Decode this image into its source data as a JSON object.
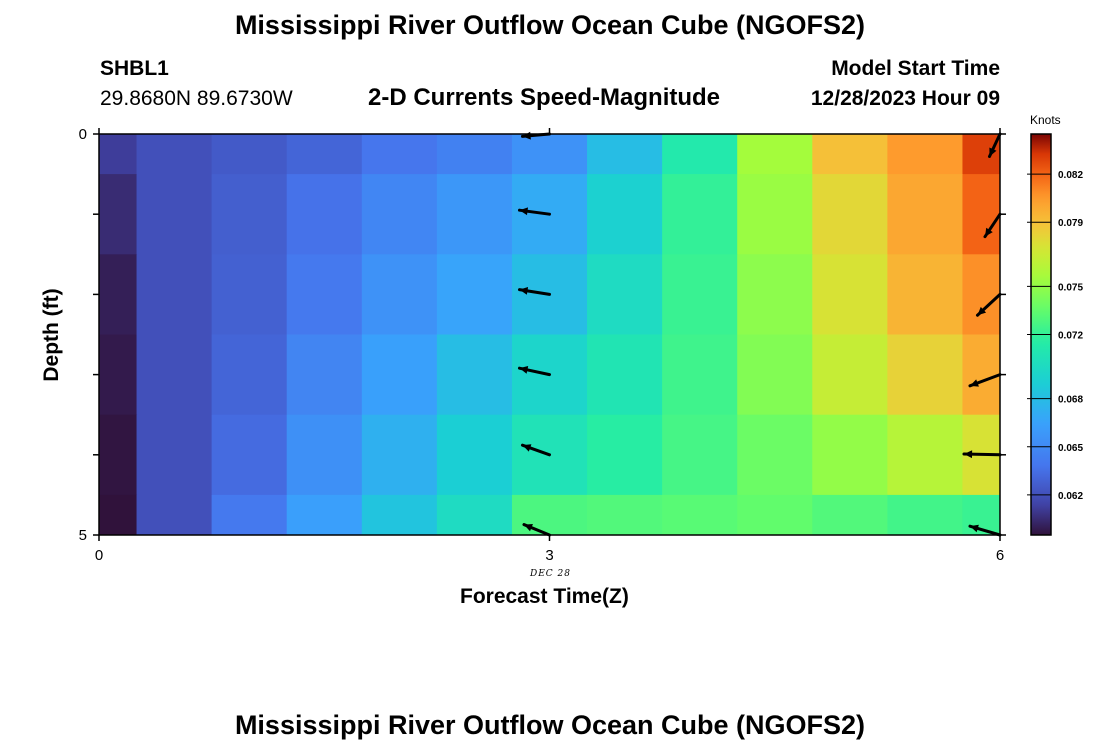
{
  "header": {
    "title_top": "Mississippi River Outflow Ocean Cube (NGOFS2)",
    "station_id": "SHBL1",
    "station_coords": "29.8680N  89.6730W",
    "plot_title": "2-D Currents Speed-Magnitude",
    "model_start_label": "Model Start Time",
    "model_start_value": "12/28/2023 Hour 09",
    "title_bottom": "Mississippi River Outflow Ocean Cube (NGOFS2)"
  },
  "chart_data": {
    "type": "heatmap",
    "title": "2-D Currents Speed-Magnitude",
    "xlabel": "Forecast Time(Z)",
    "ylabel": "Depth (ft)",
    "date_label": "DEC 28",
    "xlim": [
      0,
      6
    ],
    "ylim": [
      0,
      5
    ],
    "x_ticks": [
      0,
      3,
      6
    ],
    "x_tick_labels": [
      "0",
      "3",
      "6"
    ],
    "y_ticks": [
      0,
      1,
      2,
      3,
      4,
      5
    ],
    "y_tick_labels": [
      "0",
      "",
      "",
      "",
      "",
      "5"
    ],
    "x_edges": [
      0,
      0.25,
      0.75,
      1.25,
      1.75,
      2.25,
      2.75,
      3.25,
      3.75,
      4.25,
      4.75,
      5.25,
      5.75,
      6
    ],
    "y_edges": [
      0,
      0.5,
      1.5,
      2.5,
      3.5,
      4.5,
      5
    ],
    "colorbar": {
      "label": "Knots",
      "min": 0.0595,
      "max": 0.0845,
      "ticks": [
        0.062,
        0.065,
        0.068,
        0.072,
        0.075,
        0.079,
        0.082
      ],
      "tick_labels": [
        "0.062",
        "0.065",
        "0.068",
        "0.072",
        "0.075",
        "0.079",
        "0.082"
      ]
    },
    "speed": [
      [
        0.0612,
        0.062,
        0.0625,
        0.063,
        0.0638,
        0.0645,
        0.0655,
        0.068,
        0.0712,
        0.0755,
        0.079,
        0.0805,
        0.083
      ],
      [
        0.0605,
        0.062,
        0.0627,
        0.0636,
        0.0648,
        0.0658,
        0.067,
        0.0692,
        0.072,
        0.0752,
        0.078,
        0.08,
        0.082
      ],
      [
        0.06,
        0.062,
        0.0628,
        0.064,
        0.0655,
        0.0666,
        0.068,
        0.07,
        0.0722,
        0.0748,
        0.0775,
        0.0795,
        0.0808
      ],
      [
        0.0598,
        0.062,
        0.063,
        0.0647,
        0.0664,
        0.068,
        0.0695,
        0.0708,
        0.0724,
        0.0745,
        0.0768,
        0.0782,
        0.0798
      ],
      [
        0.0596,
        0.062,
        0.0633,
        0.0654,
        0.0673,
        0.069,
        0.0706,
        0.0716,
        0.0726,
        0.0738,
        0.075,
        0.0762,
        0.0775
      ],
      [
        0.0594,
        0.062,
        0.064,
        0.0663,
        0.0684,
        0.07,
        0.0728,
        0.073,
        0.0732,
        0.0735,
        0.073,
        0.0725,
        0.0722
      ]
    ],
    "vectors": [
      {
        "x": 3,
        "y": 0,
        "dx": -0.18,
        "dy": 0.03
      },
      {
        "x": 3,
        "y": 1,
        "dx": -0.2,
        "dy": -0.05
      },
      {
        "x": 3,
        "y": 2,
        "dx": -0.2,
        "dy": -0.06
      },
      {
        "x": 3,
        "y": 3,
        "dx": -0.2,
        "dy": -0.08
      },
      {
        "x": 3,
        "y": 4,
        "dx": -0.18,
        "dy": -0.12
      },
      {
        "x": 3,
        "y": 5,
        "dx": -0.17,
        "dy": -0.13
      },
      {
        "x": 6,
        "y": 0,
        "dx": -0.07,
        "dy": 0.28
      },
      {
        "x": 6,
        "y": 1,
        "dx": -0.1,
        "dy": 0.28
      },
      {
        "x": 6,
        "y": 2,
        "dx": -0.15,
        "dy": 0.26
      },
      {
        "x": 6,
        "y": 3,
        "dx": -0.2,
        "dy": 0.14
      },
      {
        "x": 6,
        "y": 4,
        "dx": -0.24,
        "dy": -0.01
      },
      {
        "x": 6,
        "y": 5,
        "dx": -0.2,
        "dy": -0.11
      }
    ]
  }
}
